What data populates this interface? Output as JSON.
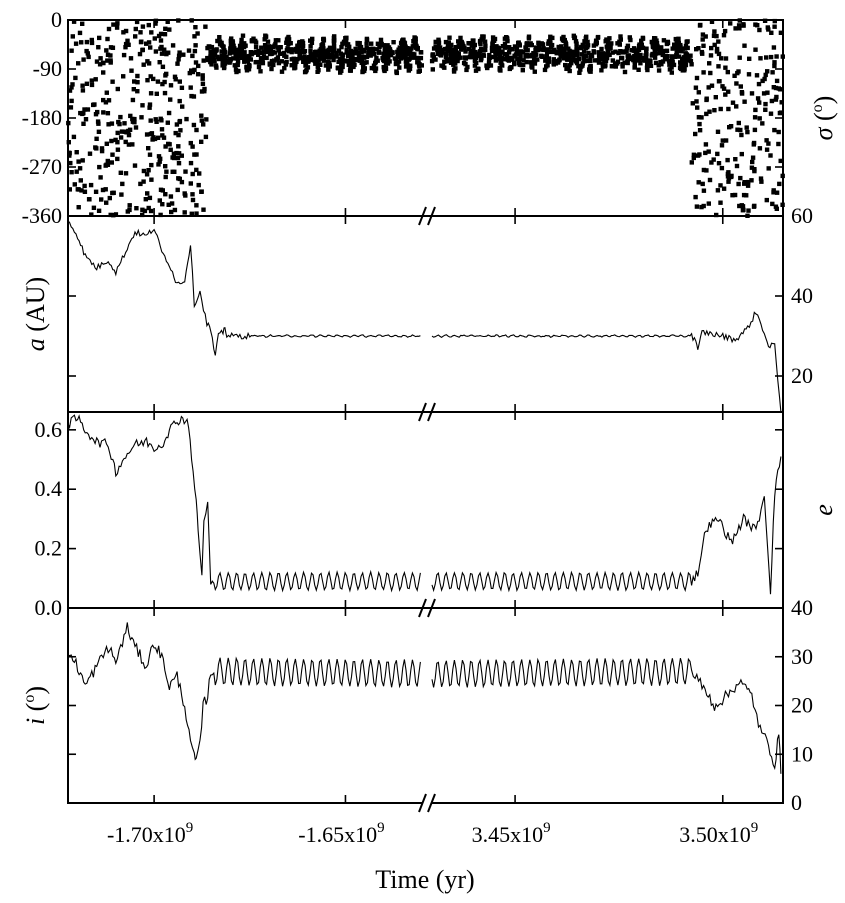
{
  "chart_data": {
    "type": "line",
    "xlabel": "Time (yr)",
    "x_axis_break": true,
    "x_segments": [
      {
        "range": [
          -1722500000.0,
          -1630000000.0
        ],
        "ticks": [
          "-1.70x10^9",
          "-1.65x10^9"
        ],
        "tick_values": [
          -1700000000.0,
          -1650000000.0
        ]
      },
      {
        "range": [
          3430000000.0,
          3514500000.0
        ],
        "ticks": [
          "3.45x10^9",
          "3.50x10^9"
        ],
        "tick_values": [
          3450000000.0,
          3500000000.0
        ]
      }
    ],
    "tick_labels": {
      "x": [
        {
          "mantissa": "-1.70x10",
          "exponent": "9"
        },
        {
          "mantissa": "-1.65x10",
          "exponent": "9"
        },
        {
          "mantissa": "3.45x10",
          "exponent": "9"
        },
        {
          "mantissa": "3.50x10",
          "exponent": "9"
        }
      ],
      "sigma_left": [
        "0",
        "-90",
        "-180",
        "-270",
        "-360"
      ],
      "a_right": [
        "60",
        "40",
        "20"
      ],
      "e_left": [
        "0.6",
        "0.4",
        "0.2",
        "0.0"
      ],
      "i_right": [
        "40",
        "30",
        "20",
        "10",
        "0"
      ]
    },
    "panels": [
      {
        "name": "sigma",
        "ylabel": {
          "sym": "σ",
          "rest": " (",
          "sup": "o",
          "end": ")"
        },
        "ylim": [
          -360,
          0
        ],
        "style": "scatter",
        "regimes": [
          {
            "x": [
              -1722500000.0,
              -1686200000.0
            ],
            "y": [
              -360,
              0
            ],
            "mode": "scattered",
            "count": 380
          },
          {
            "x": [
              -1686200000.0,
              -1630000000.0
            ],
            "y": [
              -93,
              -33
            ],
            "mode": "libration",
            "count": 610
          },
          {
            "x": [
              3430000000.0,
              3492500000.0
            ],
            "y": [
              -93,
              -33
            ],
            "mode": "libration",
            "count": 680
          },
          {
            "x": [
              3492500000.0,
              3514500000.0
            ],
            "y": [
              -360,
              0
            ],
            "mode": "scattered",
            "count": 230
          }
        ]
      },
      {
        "name": "a",
        "ylabel": {
          "sym": "a",
          "rest": " (AU)"
        },
        "ylim": [
          11,
          60
        ],
        "points": [
          [
            -1722500000.0,
            59
          ],
          [
            -1720000000.0,
            55
          ],
          [
            -1718000000.0,
            50
          ],
          [
            -1715000000.0,
            47
          ],
          [
            -1712000000.0,
            49
          ],
          [
            -1710000000.0,
            46
          ],
          [
            -1707000000.0,
            52
          ],
          [
            -1705000000.0,
            56
          ],
          [
            -1702000000.0,
            55
          ],
          [
            -1700000000.0,
            57
          ],
          [
            -1698000000.0,
            51
          ],
          [
            -1696000000.0,
            48
          ],
          [
            -1694000000.0,
            43
          ],
          [
            -1692000000.0,
            44
          ],
          [
            -1690500000.0,
            53
          ],
          [
            -1689500000.0,
            38
          ],
          [
            -1688000000.0,
            41
          ],
          [
            -1686200000.0,
            33
          ],
          [
            -1685500000.0,
            32.5
          ],
          [
            -1684800000.0,
            29
          ],
          [
            -1684000000.0,
            25
          ],
          [
            -1683200000.0,
            30
          ],
          [
            -1682000000.0,
            31
          ],
          [
            -1681500000.0,
            32.5
          ],
          [
            -1681000000.0,
            30
          ],
          [
            -1675000000.0,
            30
          ],
          [
            -1630000000.0,
            30
          ],
          [
            3430000000.0,
            30
          ],
          [
            3492500000.0,
            30
          ],
          [
            3493500000.0,
            29
          ],
          [
            3494000000.0,
            26
          ],
          [
            3495000000.0,
            31
          ],
          [
            3500000000.0,
            30
          ],
          [
            3503000000.0,
            29
          ],
          [
            3506000000.0,
            32
          ],
          [
            3508000000.0,
            36
          ],
          [
            3510000000.0,
            31
          ],
          [
            3511000000.0,
            27
          ],
          [
            3512500000.0,
            28
          ],
          [
            3514000000.0,
            11
          ]
        ]
      },
      {
        "name": "e",
        "ylabel": {
          "sym": "e"
        },
        "ylim": [
          0,
          0.66
        ],
        "points": [
          [
            -1722500000.0,
            0.62
          ],
          [
            -1720000000.0,
            0.64
          ],
          [
            -1718000000.0,
            0.6
          ],
          [
            -1715000000.0,
            0.56
          ],
          [
            -1712000000.0,
            0.55
          ],
          [
            -1710000000.0,
            0.46
          ],
          [
            -1707000000.0,
            0.52
          ],
          [
            -1705000000.0,
            0.55
          ],
          [
            -1702000000.0,
            0.56
          ],
          [
            -1700000000.0,
            0.54
          ],
          [
            -1698000000.0,
            0.55
          ],
          [
            -1696000000.0,
            0.6
          ],
          [
            -1694000000.0,
            0.63
          ],
          [
            -1692500000.0,
            0.64
          ],
          [
            -1691000000.0,
            0.62
          ],
          [
            -1689000000.0,
            0.35
          ],
          [
            -1688500000.0,
            0.27
          ],
          [
            -1687500000.0,
            0.1
          ],
          [
            -1687000000.0,
            0.3
          ],
          [
            -1686000000.0,
            0.35
          ],
          [
            -1685200000.0,
            0.08
          ],
          [
            -1684000000.0,
            0.09
          ],
          [
            -1630000000.0,
            0.09
          ],
          [
            3430000000.0,
            0.09
          ],
          [
            3492500000.0,
            0.09
          ],
          [
            3494000000.0,
            0.12
          ],
          [
            3496000000.0,
            0.27
          ],
          [
            3499000000.0,
            0.3
          ],
          [
            3502000000.0,
            0.22
          ],
          [
            3505000000.0,
            0.3
          ],
          [
            3508000000.0,
            0.26
          ],
          [
            3510000000.0,
            0.38
          ],
          [
            3511500000.0,
            0.06
          ],
          [
            3512500000.0,
            0.39
          ],
          [
            3514000000.0,
            0.51
          ]
        ]
      },
      {
        "name": "i",
        "ylabel": {
          "sym": "i",
          "rest": " (",
          "sup": "o",
          "end": ")"
        },
        "ylim": [
          0,
          40
        ],
        "points": [
          [
            -1722500000.0,
            31
          ],
          [
            -1720000000.0,
            28
          ],
          [
            -1718000000.0,
            24
          ],
          [
            -1715000000.0,
            28
          ],
          [
            -1712000000.0,
            32
          ],
          [
            -1710000000.0,
            29
          ],
          [
            -1707000000.0,
            36
          ],
          [
            -1705000000.0,
            32
          ],
          [
            -1702000000.0,
            28
          ],
          [
            -1700000000.0,
            33
          ],
          [
            -1698000000.0,
            30
          ],
          [
            -1696000000.0,
            24
          ],
          [
            -1694000000.0,
            26
          ],
          [
            -1692000000.0,
            20
          ],
          [
            -1690500000.0,
            12
          ],
          [
            -1689500000.0,
            10
          ],
          [
            -1689000000.0,
            8
          ],
          [
            -1688000000.0,
            12
          ],
          [
            -1687200000.0,
            20
          ],
          [
            -1686000000.0,
            22
          ],
          [
            -1685200000.0,
            27
          ],
          [
            -1684000000.0,
            27
          ],
          [
            -1630000000.0,
            26.5
          ],
          [
            3430000000.0,
            26.5
          ],
          [
            3492500000.0,
            27
          ],
          [
            3495000000.0,
            24
          ],
          [
            3498000000.0,
            20
          ],
          [
            3501000000.0,
            22
          ],
          [
            3504000000.0,
            25
          ],
          [
            3507000000.0,
            22
          ],
          [
            3509000000.0,
            15
          ],
          [
            3511000000.0,
            12
          ],
          [
            3512500000.0,
            8
          ],
          [
            3513500000.0,
            14
          ],
          [
            3514000000.0,
            6
          ]
        ]
      }
    ]
  }
}
